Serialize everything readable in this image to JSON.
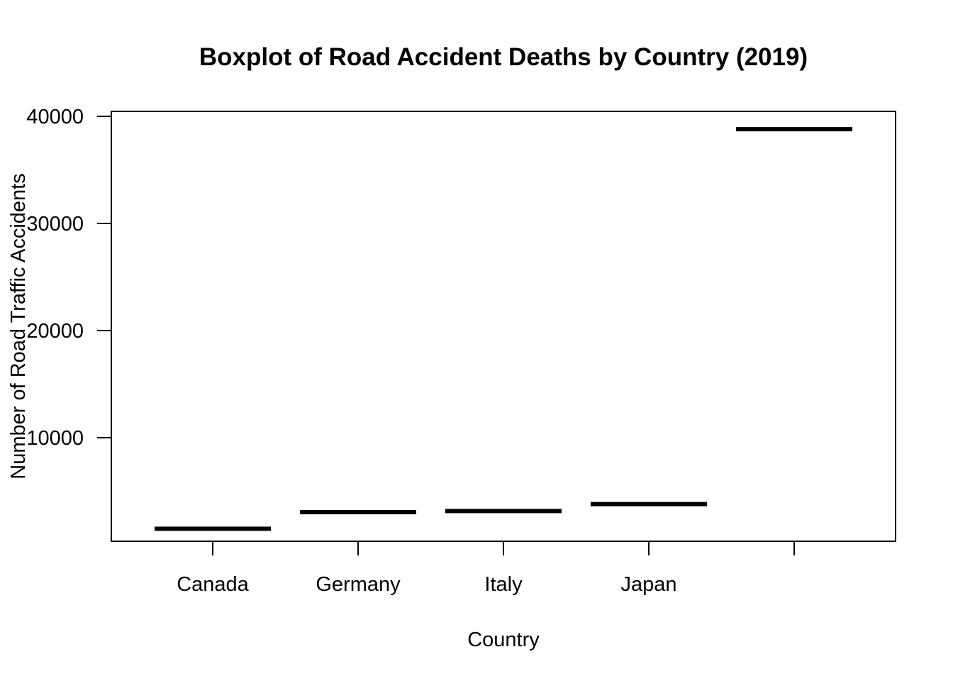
{
  "chart_data": {
    "type": "box",
    "title": "Boxplot of Road Accident Deaths by Country (2019)",
    "xlabel": "Country",
    "ylabel": "Number of Road Traffic Accidents",
    "categories": [
      "Canada",
      "Germany",
      "Italy",
      "Japan",
      ""
    ],
    "values": [
      1500,
      3050,
      3150,
      3800,
      38800
    ],
    "yticks": [
      10000,
      20000,
      30000,
      40000
    ],
    "ylim": [
      0,
      40000
    ],
    "grid": false,
    "legend": "none",
    "colors": {
      "median": "#000000",
      "axis": "#000000",
      "background": "#ffffff"
    }
  }
}
